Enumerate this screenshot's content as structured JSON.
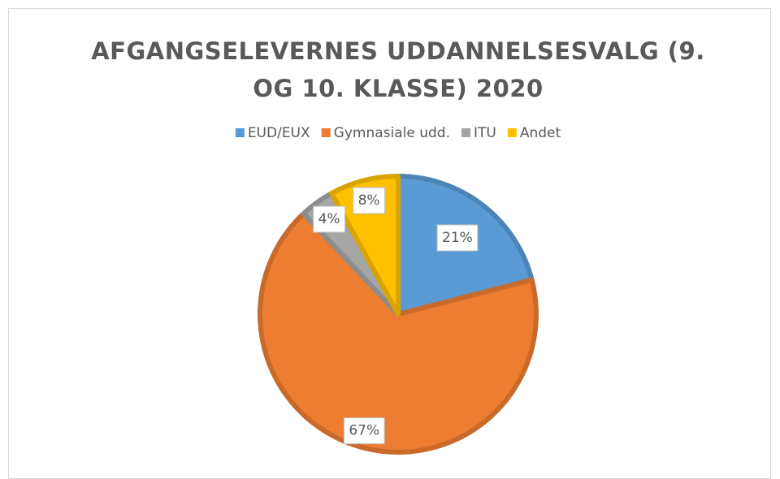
{
  "chart_data": {
    "type": "pie",
    "title": "AFGANGSELEVERNES UDDANNELSESVALG (9. OG 10. KLASSE) 2020",
    "categories": [
      "EUD/EUX",
      "Gymnasiale udd.",
      "ITU",
      "Andet"
    ],
    "values": [
      21,
      67,
      4,
      8
    ],
    "value_labels": [
      "21%",
      "67%",
      "4%",
      "8%"
    ],
    "colors": [
      "#5B9BD5",
      "#ED7D31",
      "#A5A5A5",
      "#FFC000"
    ],
    "legend": "top"
  }
}
